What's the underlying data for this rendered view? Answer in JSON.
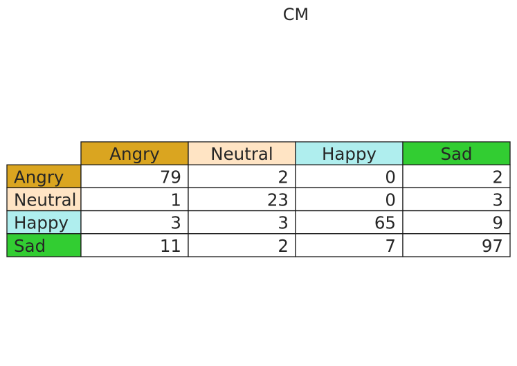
{
  "chart_data": {
    "type": "table",
    "title": "CM",
    "columns": [
      "Angry",
      "Neutral",
      "Happy",
      "Sad"
    ],
    "rows": [
      "Angry",
      "Neutral",
      "Happy",
      "Sad"
    ],
    "values": [
      [
        79,
        2,
        0,
        2
      ],
      [
        1,
        23,
        0,
        3
      ],
      [
        3,
        3,
        65,
        9
      ],
      [
        11,
        2,
        7,
        97
      ]
    ],
    "header_colors": [
      "#DAA520",
      "#FFE4C4",
      "#AFEEEE",
      "#32CD32"
    ],
    "cell_color": "#FFFFFF",
    "border_color": "#1a1a1a"
  }
}
